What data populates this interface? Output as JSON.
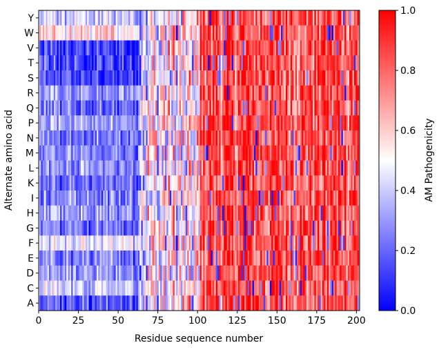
{
  "chart_data": {
    "type": "heatmap",
    "title": "",
    "xlabel": "Residue sequence number",
    "ylabel": "Alternate amino acid",
    "colorbar_label": "AM Pathogenicity",
    "x_range": [
      1,
      201
    ],
    "xlim": [
      0,
      202
    ],
    "x_ticks": [
      0,
      25,
      50,
      75,
      100,
      125,
      150,
      175,
      200
    ],
    "rows": [
      "Y",
      "W",
      "V",
      "T",
      "S",
      "R",
      "Q",
      "P",
      "N",
      "M",
      "L",
      "K",
      "I",
      "H",
      "G",
      "F",
      "E",
      "D",
      "C",
      "A"
    ],
    "value_range": [
      0.0,
      1.0
    ],
    "colorbar_ticks": [
      "0.0",
      "0.2",
      "0.4",
      "0.6",
      "0.8",
      "1.0"
    ],
    "colormap": {
      "low": "#0000ff",
      "mid": "#ffffff",
      "high": "#ff0000"
    },
    "approx_region_means": [
      {
        "residues": [
          1,
          63
        ],
        "row_mean": {
          "Y": 0.38,
          "W": 0.55,
          "V": 0.12,
          "T": 0.14,
          "S": 0.12,
          "R": 0.3,
          "Q": 0.2,
          "P": 0.3,
          "N": 0.22,
          "M": 0.25,
          "L": 0.28,
          "K": 0.2,
          "I": 0.25,
          "H": 0.3,
          "G": 0.22,
          "F": 0.45,
          "E": 0.25,
          "D": 0.3,
          "C": 0.38,
          "A": 0.18
        }
      },
      {
        "residues": [
          64,
          101
        ],
        "mean": 0.48
      },
      {
        "residues": [
          102,
          201
        ],
        "mean": 0.85
      }
    ]
  }
}
